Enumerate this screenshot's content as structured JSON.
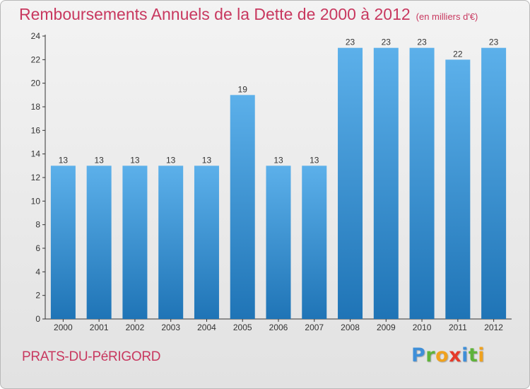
{
  "title": "Remboursements Annuels de la Dette de 2000 à 2012",
  "unit": "(en milliers d'€)",
  "commune": "PRATS-DU-PéRIGORD",
  "logo": {
    "letters": [
      "P",
      "r",
      "o",
      "x",
      "i",
      "t",
      "i"
    ],
    "colors": [
      "#3f8fd8",
      "#5fb33a",
      "#f0a21e",
      "#e63a2a",
      "#3f8fd8",
      "#5fb33a",
      "#f0a21e"
    ]
  },
  "colors": {
    "bar_top": "#5cb0ea",
    "bar_bottom": "#1f74b6",
    "title": "#c8385f",
    "axis": "#333333"
  },
  "chart_data": {
    "type": "bar",
    "categories": [
      "2000",
      "2001",
      "2002",
      "2003",
      "2004",
      "2005",
      "2006",
      "2007",
      "2008",
      "2009",
      "2010",
      "2011",
      "2012"
    ],
    "values": [
      13,
      13,
      13,
      13,
      13,
      19,
      13,
      13,
      23,
      23,
      23,
      22,
      23
    ],
    "ylim": [
      0,
      24
    ],
    "yticks": [
      0,
      2,
      4,
      6,
      8,
      10,
      12,
      14,
      16,
      18,
      20,
      22,
      24
    ],
    "grid": false,
    "data_labels": true
  }
}
